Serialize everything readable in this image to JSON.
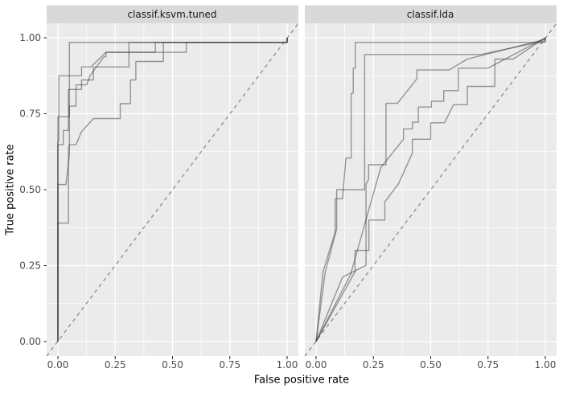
{
  "figure": {
    "kind": "ggplot2-faceted-roc-plot",
    "colors": {
      "background": "#FFFFFF",
      "panel_bg": "#EBEBEB",
      "strip_bg": "#D9D9D9",
      "grid": "#FFFFFF",
      "curve": "#3C3C3C",
      "curve_opacity": 0.5,
      "diagonal": "#8A8A8A",
      "tick_text": "#4D4D4D",
      "tick_mark": "#333333",
      "title_text": "#000000"
    }
  },
  "chart_data": {
    "type": "line",
    "subtype": "roc-step-curves",
    "xlabel": "False positive rate",
    "ylabel": "True positive rate",
    "xlim": [
      0,
      1
    ],
    "ylim": [
      0,
      1
    ],
    "x_tick_labels": [
      "0.00",
      "0.25",
      "0.50",
      "0.75",
      "1.00"
    ],
    "y_tick_labels": [
      "0.00",
      "0.25",
      "0.50",
      "0.75",
      "1.00"
    ],
    "x_tick_values": [
      0,
      0.25,
      0.5,
      0.75,
      1
    ],
    "y_tick_values": [
      0,
      0.25,
      0.5,
      0.75,
      1
    ],
    "minor_tick_values": [
      0.125,
      0.375,
      0.625,
      0.875
    ],
    "grid": "on",
    "legend_position": "none",
    "reference_line": {
      "style": "dashed",
      "from": [
        0,
        0
      ],
      "to": [
        1,
        1
      ]
    },
    "facets": [
      {
        "label": "classif.ksvm.tuned",
        "curves": [
          [
            [
              0,
              0
            ],
            [
              0,
              0.74
            ],
            [
              0.05,
              0.74
            ],
            [
              0.05,
              0.985
            ],
            [
              1,
              0.985
            ],
            [
              1,
              1
            ]
          ],
          [
            [
              0,
              0
            ],
            [
              0,
              0.66
            ],
            [
              0.004,
              0.66
            ],
            [
              0.004,
              0.875
            ],
            [
              0.103,
              0.875
            ],
            [
              0.103,
              0.904
            ],
            [
              0.144,
              0.904
            ],
            [
              0.21,
              0.952
            ],
            [
              0.56,
              0.952
            ],
            [
              0.56,
              0.985
            ],
            [
              1,
              0.985
            ],
            [
              1,
              1
            ]
          ],
          [
            [
              0,
              0
            ],
            [
              0,
              0.39
            ],
            [
              0.046,
              0.39
            ],
            [
              0.046,
              0.635
            ],
            [
              0.05,
              0.648
            ],
            [
              0.05,
              0.775
            ],
            [
              0.079,
              0.775
            ],
            [
              0.079,
              0.83
            ],
            [
              0.103,
              0.83
            ],
            [
              0.103,
              0.861
            ],
            [
              0.155,
              0.861
            ],
            [
              0.155,
              0.904
            ],
            [
              0.31,
              0.904
            ],
            [
              0.31,
              0.952
            ],
            [
              0.425,
              0.952
            ],
            [
              0.425,
              0.985
            ],
            [
              1,
              0.985
            ],
            [
              1,
              1
            ]
          ],
          [
            [
              0,
              0
            ],
            [
              0,
              0.517
            ],
            [
              0.035,
              0.517
            ],
            [
              0.05,
              0.613
            ],
            [
              0.05,
              0.648
            ],
            [
              0.079,
              0.648
            ],
            [
              0.103,
              0.691
            ],
            [
              0.155,
              0.734
            ],
            [
              0.272,
              0.734
            ],
            [
              0.272,
              0.783
            ],
            [
              0.317,
              0.783
            ],
            [
              0.317,
              0.861
            ],
            [
              0.34,
              0.861
            ],
            [
              0.34,
              0.922
            ],
            [
              0.46,
              0.922
            ],
            [
              0.46,
              0.985
            ],
            [
              1,
              0.985
            ],
            [
              1,
              1
            ]
          ],
          [
            [
              0,
              0
            ],
            [
              0,
              0.648
            ],
            [
              0.023,
              0.648
            ],
            [
              0.023,
              0.695
            ],
            [
              0.046,
              0.695
            ],
            [
              0.046,
              0.83
            ],
            [
              0.08,
              0.83
            ],
            [
              0.08,
              0.845
            ],
            [
              0.125,
              0.845
            ],
            [
              0.14,
              0.875
            ],
            [
              0.2,
              0.937
            ],
            [
              0.209,
              0.937
            ],
            [
              0.209,
              0.952
            ],
            [
              0.31,
              0.952
            ],
            [
              0.31,
              0.985
            ],
            [
              1,
              0.985
            ],
            [
              1,
              1
            ]
          ]
        ]
      },
      {
        "label": "classif.lda",
        "curves": [
          [
            [
              0,
              0
            ],
            [
              0.03,
              0.23
            ],
            [
              0.083,
              0.36
            ],
            [
              0.083,
              0.47
            ],
            [
              0.115,
              0.47
            ],
            [
              0.13,
              0.604
            ],
            [
              0.153,
              0.604
            ],
            [
              0.153,
              0.817
            ],
            [
              0.162,
              0.817
            ],
            [
              0.162,
              0.9
            ],
            [
              0.171,
              0.9
            ],
            [
              0.171,
              0.985
            ],
            [
              1,
              0.985
            ],
            [
              1,
              1
            ]
          ],
          [
            [
              0,
              0
            ],
            [
              0.115,
              0.212
            ],
            [
              0.218,
              0.251
            ],
            [
              0.218,
              0.518
            ],
            [
              0.229,
              0.534
            ],
            [
              0.229,
              0.582
            ],
            [
              0.305,
              0.582
            ],
            [
              0.305,
              0.784
            ],
            [
              0.355,
              0.784
            ],
            [
              0.44,
              0.865
            ],
            [
              0.44,
              0.894
            ],
            [
              0.58,
              0.894
            ],
            [
              0.66,
              0.93
            ],
            [
              1,
              0.995
            ],
            [
              1,
              1
            ]
          ],
          [
            [
              0,
              0
            ],
            [
              0.04,
              0.23
            ],
            [
              0.09,
              0.37
            ],
            [
              0.09,
              0.5
            ],
            [
              0.212,
              0.5
            ],
            [
              0.212,
              0.945
            ],
            [
              0.72,
              0.945
            ],
            [
              1,
              0.99
            ],
            [
              1,
              1
            ]
          ],
          [
            [
              0,
              0
            ],
            [
              0.15,
              0.22
            ],
            [
              0.282,
              0.573
            ],
            [
              0.381,
              0.666
            ],
            [
              0.381,
              0.7
            ],
            [
              0.42,
              0.7
            ],
            [
              0.42,
              0.722
            ],
            [
              0.446,
              0.722
            ],
            [
              0.446,
              0.772
            ],
            [
              0.503,
              0.772
            ],
            [
              0.503,
              0.791
            ],
            [
              0.557,
              0.791
            ],
            [
              0.557,
              0.826
            ],
            [
              0.621,
              0.826
            ],
            [
              0.621,
              0.9
            ],
            [
              0.75,
              0.9
            ],
            [
              1,
              1
            ]
          ],
          [
            [
              0,
              0
            ],
            [
              0.17,
              0.23
            ],
            [
              0.17,
              0.3
            ],
            [
              0.23,
              0.3
            ],
            [
              0.23,
              0.4
            ],
            [
              0.3,
              0.4
            ],
            [
              0.3,
              0.46
            ],
            [
              0.36,
              0.52
            ],
            [
              0.42,
              0.62
            ],
            [
              0.42,
              0.666
            ],
            [
              0.5,
              0.666
            ],
            [
              0.5,
              0.72
            ],
            [
              0.56,
              0.72
            ],
            [
              0.6,
              0.78
            ],
            [
              0.66,
              0.78
            ],
            [
              0.66,
              0.84
            ],
            [
              0.78,
              0.84
            ],
            [
              0.78,
              0.93
            ],
            [
              0.86,
              0.93
            ],
            [
              1,
              1
            ]
          ]
        ]
      }
    ]
  }
}
